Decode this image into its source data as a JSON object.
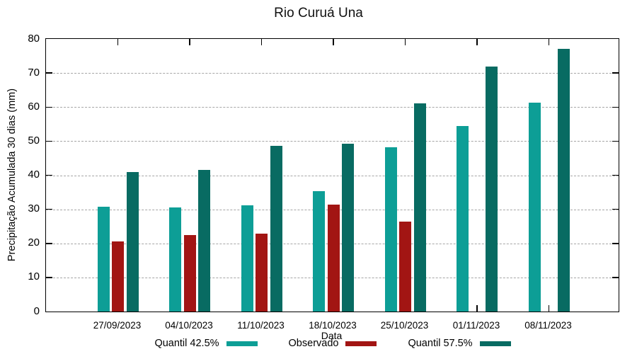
{
  "chart_data": {
    "type": "bar",
    "title": "Rio Curuá Una",
    "xlabel": "Data",
    "ylabel": "Precipitação Acumulada 30 dias (mm)",
    "categories": [
      "27/09/2023",
      "04/10/2023",
      "11/10/2023",
      "18/10/2023",
      "25/10/2023",
      "01/11/2023",
      "08/11/2023"
    ],
    "series": [
      {
        "name": "Quantil 42.5%",
        "color": "#0d9e96",
        "values": [
          30.7,
          30.5,
          31.1,
          35.4,
          48.3,
          54.5,
          61.3
        ]
      },
      {
        "name": "Observado",
        "color": "#a21513",
        "values": [
          20.5,
          22.4,
          22.9,
          31.3,
          26.4,
          null,
          null
        ]
      },
      {
        "name": "Quantil 57.5%",
        "color": "#086b62",
        "values": [
          41.0,
          41.5,
          48.7,
          49.2,
          61.1,
          71.8,
          77.0
        ]
      }
    ],
    "ylim": [
      0,
      80
    ],
    "yticks": [
      0,
      10,
      20,
      30,
      40,
      50,
      60,
      70,
      80
    ],
    "grid": true,
    "legend_position": "bottom"
  }
}
